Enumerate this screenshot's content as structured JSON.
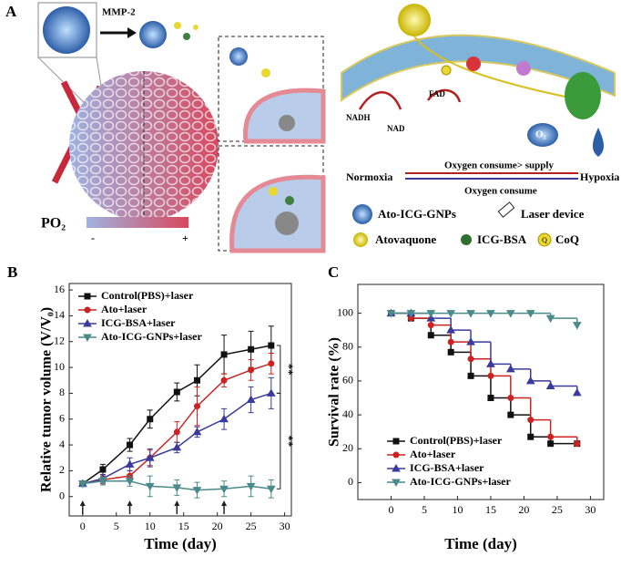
{
  "panel_a": {
    "label": "A",
    "mmp": "MMP-2",
    "po2": "PO₂",
    "minus": "-",
    "plus": "+",
    "nadh": "NADH",
    "nad": "NAD",
    "fad": "FAD",
    "o2": "O₂",
    "q": "Q",
    "normoxia": "Normoxia",
    "hypoxia": "Hypoxia",
    "consume_supply": "Oxygen consume> supply",
    "consume": "Oxygen consume",
    "legend": [
      "Ato-ICG-GNPs",
      "Laser device",
      "Atovaquone",
      "ICG-BSA",
      "CoQ"
    ]
  },
  "chart_data": [
    {
      "type": "line",
      "panel": "B",
      "xlabel": "Time (day)",
      "ylabel": "Relative tumor volume (V/V₀)",
      "x": [
        0,
        3,
        7,
        10,
        14,
        17,
        21,
        25,
        28
      ],
      "xlim": [
        -2,
        31
      ],
      "ylim": [
        -1.5,
        16.5
      ],
      "xticks": [
        0,
        5,
        10,
        15,
        20,
        25,
        30
      ],
      "yticks": [
        0,
        2,
        4,
        6,
        8,
        10,
        12,
        14,
        16
      ],
      "laser_days": [
        0,
        7,
        14,
        21
      ],
      "annotations": [
        "**",
        "**"
      ],
      "series": [
        {
          "name": "Control(PBS)+laser",
          "color": "#111111",
          "marker": "square",
          "values": [
            1,
            2.1,
            4,
            6,
            8.1,
            9,
            11,
            11.4,
            11.7
          ],
          "errors": [
            0.2,
            0.4,
            0.5,
            0.7,
            0.7,
            1.2,
            1.5,
            1.4,
            1.5
          ]
        },
        {
          "name": "Ato+laser",
          "color": "#cc2222",
          "marker": "circle",
          "values": [
            1,
            1.3,
            1.6,
            3,
            5,
            7,
            9,
            9.8,
            10.3
          ],
          "errors": [
            0.2,
            0.3,
            0.4,
            0.6,
            0.8,
            1.5,
            0.5,
            0.8,
            0.8
          ]
        },
        {
          "name": "ICG-BSA+laser",
          "color": "#3a3a9a",
          "marker": "triangle",
          "values": [
            1,
            1.4,
            2.5,
            3,
            3.8,
            5,
            6,
            7.5,
            8
          ],
          "errors": [
            0.2,
            0.3,
            0.5,
            0.7,
            0.4,
            0.4,
            0.8,
            1,
            1.2
          ]
        },
        {
          "name": "Ato-ICG-GNPs+laser",
          "color": "#4a8a8a",
          "marker": "tri-down",
          "values": [
            1,
            1.2,
            1.2,
            0.8,
            0.7,
            0.5,
            0.6,
            0.8,
            0.6
          ],
          "errors": [
            0.2,
            0.3,
            0.4,
            0.8,
            0.6,
            0.6,
            0.6,
            0.8,
            0.7
          ]
        }
      ]
    },
    {
      "type": "step",
      "panel": "C",
      "xlabel": "Time (day)",
      "ylabel": "Survival rate (%)",
      "x": [
        0,
        3,
        6,
        9,
        12,
        15,
        18,
        21,
        24,
        28
      ],
      "xlim": [
        -5,
        32
      ],
      "ylim": [
        -10,
        117
      ],
      "xticks": [
        0,
        5,
        10,
        15,
        20,
        25,
        30
      ],
      "yticks": [
        0,
        20,
        40,
        60,
        80,
        100
      ],
      "series": [
        {
          "name": "Control(PBS)+laser",
          "color": "#111111",
          "marker": "square",
          "values": [
            100,
            97,
            87,
            77,
            63,
            50,
            40,
            27,
            23,
            23
          ]
        },
        {
          "name": "Ato+laser",
          "color": "#cc2222",
          "marker": "circle",
          "values": [
            100,
            97,
            93,
            83,
            73,
            63,
            50,
            37,
            27,
            23
          ]
        },
        {
          "name": "ICG-BSA+laser",
          "color": "#3a3a9a",
          "marker": "triangle",
          "values": [
            100,
            100,
            97,
            90,
            83,
            70,
            67,
            60,
            57,
            53
          ]
        },
        {
          "name": "Ato-ICG-GNPs+laser",
          "color": "#4a8a8a",
          "marker": "tri-down",
          "values": [
            100,
            100,
            100,
            100,
            100,
            100,
            100,
            100,
            97,
            93
          ]
        }
      ]
    }
  ]
}
